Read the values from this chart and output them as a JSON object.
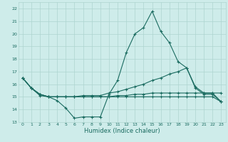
{
  "xlabel": "Humidex (Indice chaleur)",
  "background_color": "#ceecea",
  "grid_color": "#aed4d0",
  "line_color": "#1a6b60",
  "xlim": [
    -0.5,
    23.5
  ],
  "ylim": [
    13,
    22.5
  ],
  "yticks": [
    13,
    14,
    15,
    16,
    17,
    18,
    19,
    20,
    21,
    22
  ],
  "xticks": [
    0,
    1,
    2,
    3,
    4,
    5,
    6,
    7,
    8,
    9,
    10,
    11,
    12,
    13,
    14,
    15,
    16,
    17,
    18,
    19,
    20,
    21,
    22,
    23
  ],
  "series": [
    {
      "x": [
        0,
        1,
        2,
        3,
        4,
        5,
        6,
        7,
        8,
        9,
        10,
        11,
        12,
        13,
        14,
        15,
        16,
        17,
        18,
        19,
        20,
        21,
        22,
        23
      ],
      "y": [
        16.5,
        15.7,
        15.1,
        15.0,
        14.7,
        14.1,
        13.3,
        13.4,
        13.4,
        13.4,
        15.2,
        16.3,
        18.5,
        20.0,
        20.5,
        21.8,
        20.2,
        19.3,
        17.8,
        17.3,
        15.7,
        15.2,
        15.2,
        14.6
      ]
    },
    {
      "x": [
        0,
        1,
        2,
        3,
        4,
        5,
        6,
        7,
        8,
        9,
        10,
        11,
        12,
        13,
        14,
        15,
        16,
        17,
        18,
        19,
        20,
        21,
        22,
        23
      ],
      "y": [
        16.5,
        15.7,
        15.2,
        15.0,
        15.0,
        15.0,
        15.0,
        15.1,
        15.1,
        15.1,
        15.3,
        15.4,
        15.6,
        15.8,
        16.0,
        16.3,
        16.5,
        16.8,
        17.0,
        17.3,
        15.8,
        15.3,
        15.3,
        15.3
      ]
    },
    {
      "x": [
        0,
        1,
        2,
        3,
        4,
        5,
        6,
        7,
        8,
        9,
        10,
        11,
        12,
        13,
        14,
        15,
        16,
        17,
        18,
        19,
        20,
        21,
        22,
        23
      ],
      "y": [
        16.5,
        15.7,
        15.2,
        15.0,
        15.0,
        15.0,
        15.0,
        15.0,
        15.0,
        15.0,
        15.0,
        15.1,
        15.1,
        15.2,
        15.2,
        15.3,
        15.3,
        15.3,
        15.3,
        15.3,
        15.3,
        15.3,
        15.3,
        14.6
      ]
    },
    {
      "x": [
        0,
        1,
        2,
        3,
        4,
        5,
        6,
        7,
        8,
        9,
        10,
        11,
        12,
        13,
        14,
        15,
        16,
        17,
        18,
        19,
        20,
        21,
        22,
        23
      ],
      "y": [
        16.5,
        15.7,
        15.2,
        15.0,
        15.0,
        15.0,
        15.0,
        15.0,
        15.0,
        15.0,
        15.0,
        15.0,
        15.0,
        15.0,
        15.0,
        15.0,
        15.0,
        15.0,
        15.0,
        15.0,
        15.0,
        15.0,
        15.0,
        14.6
      ]
    }
  ]
}
